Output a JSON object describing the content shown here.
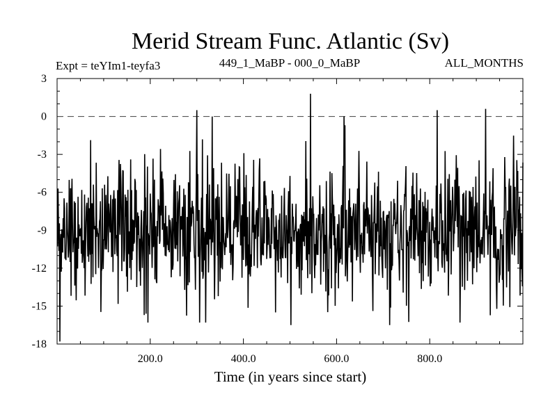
{
  "chart_data": {
    "type": "line",
    "title": "Merid Stream Func. Atlantic (Sv)",
    "experiment_label": "Expt = teYIm1-teyfa3",
    "comparison_label": "449_1_MaBP - 000_0_MaBP",
    "period_label": "ALL_MONTHS",
    "xlabel": "Time (in years since start)",
    "ylabel": "",
    "xlim": [
      0,
      1000
    ],
    "ylim": [
      -18,
      3
    ],
    "xticks": [
      200,
      400,
      600,
      800
    ],
    "xtick_labels": [
      "200.0",
      "400.0",
      "600.0",
      "800.0"
    ],
    "xminor_step": 50,
    "yticks": [
      3,
      0,
      -3,
      -6,
      -9,
      -12,
      -15,
      -18
    ],
    "ytick_labels": [
      "3",
      "0",
      "-3",
      "-6",
      "-9",
      "-12",
      "-15",
      "-18"
    ],
    "yminor_step": 1,
    "reference_line": {
      "y": 0,
      "style": "dashed"
    },
    "series": [
      {
        "name": "Merid Stream Func. Atlantic",
        "x_start": 1,
        "x_step": 1,
        "n_points": 1000,
        "mean": -9.0,
        "std": 2.6,
        "min": -17.8,
        "max": 1.8,
        "notable_points": [
          {
            "x": 6,
            "y": -17.8
          },
          {
            "x": 300,
            "y": 0.5
          },
          {
            "x": 333,
            "y": 0.0
          },
          {
            "x": 544,
            "y": 1.8
          },
          {
            "x": 616,
            "y": 0.0
          },
          {
            "x": 816,
            "y": 0.5
          },
          {
            "x": 920,
            "y": 0.6
          },
          {
            "x": 502,
            "y": -16.5
          },
          {
            "x": 714,
            "y": -16.5
          }
        ]
      }
    ]
  }
}
